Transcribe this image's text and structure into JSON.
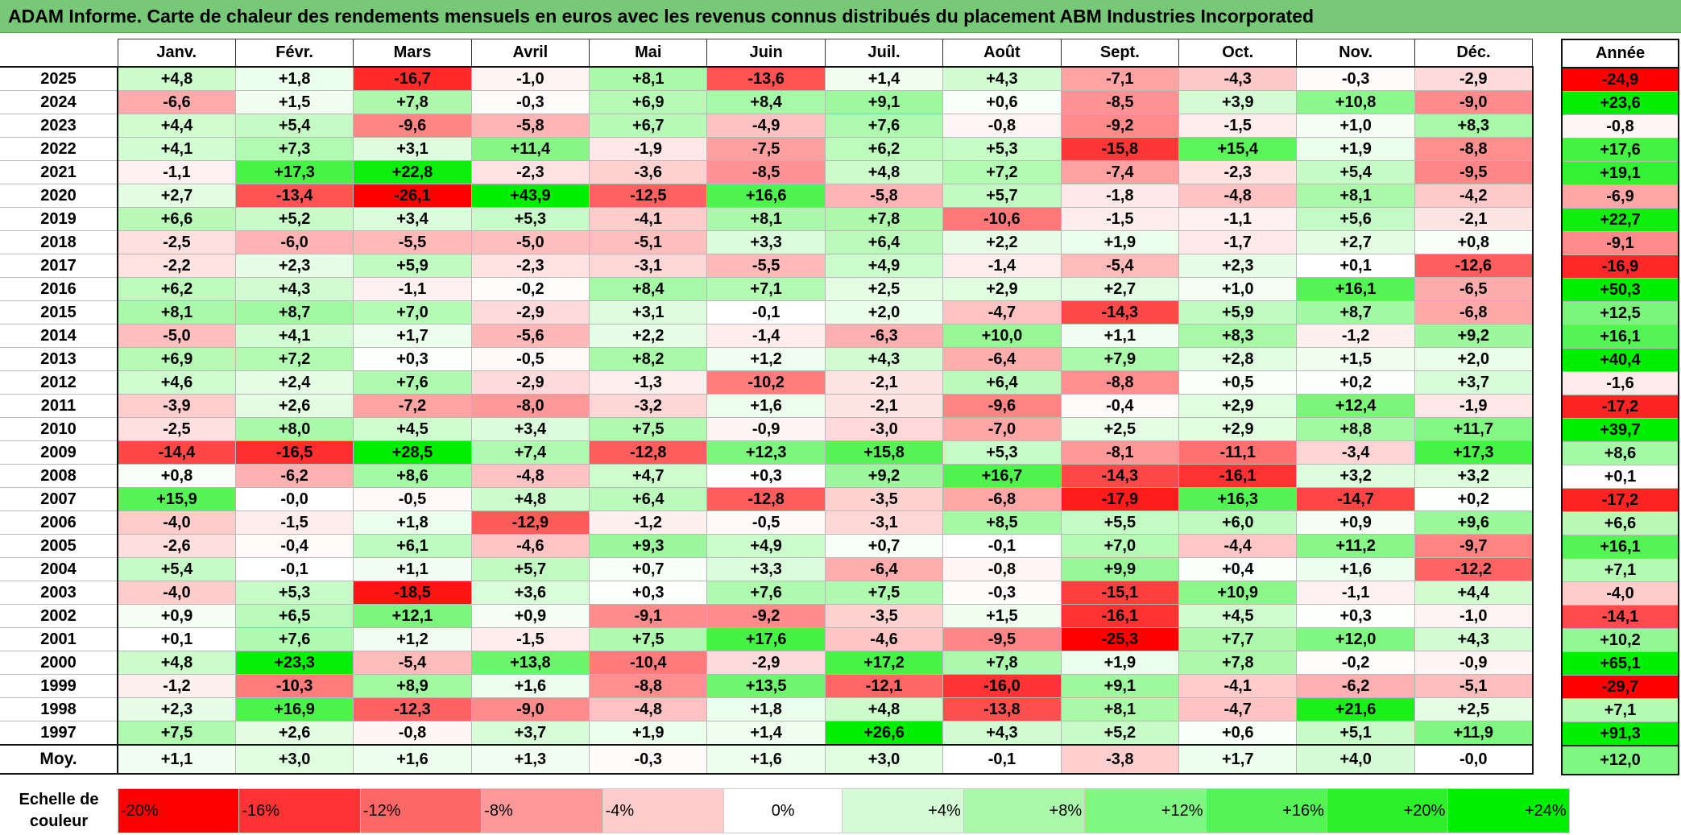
{
  "title": "ADAM Informe. Carte de chaleur des rendements mensuels en euros avec les revenus connus distribués du placement ABM Industries Incorporated",
  "chart_data": {
    "type": "heatmap",
    "title": "ADAM Informe. Carte de chaleur des rendements mensuels en euros avec les revenus connus distribués du placement ABM Industries Incorporated",
    "columns": [
      "Janv.",
      "Févr.",
      "Mars",
      "Avril",
      "Mai",
      "Juin",
      "Juil.",
      "Août",
      "Sept.",
      "Oct.",
      "Nov.",
      "Déc."
    ],
    "annual_header": "Année",
    "rows": [
      {
        "year": "2025",
        "values": [
          "+4,8",
          "+1,8",
          "-16,7",
          "-1,0",
          "+8,1",
          "-13,6",
          "+1,4",
          "+4,3",
          "-7,1",
          "-4,3",
          "-0,3",
          "-2,9"
        ],
        "annual": "-24,9"
      },
      {
        "year": "2024",
        "values": [
          "-6,6",
          "+1,5",
          "+7,8",
          "-0,3",
          "+6,9",
          "+8,4",
          "+9,1",
          "+0,6",
          "-8,5",
          "+3,9",
          "+10,8",
          "-9,0"
        ],
        "annual": "+23,6"
      },
      {
        "year": "2023",
        "values": [
          "+4,4",
          "+5,4",
          "-9,6",
          "-5,8",
          "+6,7",
          "-4,9",
          "+7,6",
          "-0,8",
          "-9,2",
          "-1,5",
          "+1,0",
          "+8,3"
        ],
        "annual": "-0,8"
      },
      {
        "year": "2022",
        "values": [
          "+4,1",
          "+7,3",
          "+3,1",
          "+11,4",
          "-1,9",
          "-7,5",
          "+6,2",
          "+5,3",
          "-15,8",
          "+15,4",
          "+1,9",
          "-8,8"
        ],
        "annual": "+17,6"
      },
      {
        "year": "2021",
        "values": [
          "-1,1",
          "+17,3",
          "+22,8",
          "-2,3",
          "-3,6",
          "-8,5",
          "+4,8",
          "+7,2",
          "-7,4",
          "-2,3",
          "+5,4",
          "-9,5"
        ],
        "annual": "+19,1"
      },
      {
        "year": "2020",
        "values": [
          "+2,7",
          "-13,4",
          "-26,1",
          "+43,9",
          "-12,5",
          "+16,6",
          "-5,8",
          "+5,7",
          "-1,8",
          "-4,8",
          "+8,1",
          "-4,2"
        ],
        "annual": "-6,9"
      },
      {
        "year": "2019",
        "values": [
          "+6,6",
          "+5,2",
          "+3,4",
          "+5,3",
          "-4,1",
          "+8,1",
          "+7,8",
          "-10,6",
          "-1,5",
          "-1,1",
          "+5,6",
          "-2,1"
        ],
        "annual": "+22,7"
      },
      {
        "year": "2018",
        "values": [
          "-2,5",
          "-6,0",
          "-5,5",
          "-5,0",
          "-5,1",
          "+3,3",
          "+6,4",
          "+2,2",
          "+1,9",
          "-1,7",
          "+2,7",
          "+0,8"
        ],
        "annual": "-9,1"
      },
      {
        "year": "2017",
        "values": [
          "-2,2",
          "+2,3",
          "+5,9",
          "-2,3",
          "-3,1",
          "-5,5",
          "+4,9",
          "-1,4",
          "-5,4",
          "+2,3",
          "+0,1",
          "-12,6"
        ],
        "annual": "-16,9"
      },
      {
        "year": "2016",
        "values": [
          "+6,2",
          "+4,3",
          "-1,1",
          "-0,2",
          "+8,4",
          "+7,1",
          "+2,5",
          "+2,9",
          "+2,7",
          "+1,0",
          "+16,1",
          "-6,5"
        ],
        "annual": "+50,3"
      },
      {
        "year": "2015",
        "values": [
          "+8,1",
          "+8,7",
          "+7,0",
          "-2,9",
          "+3,1",
          "-0,1",
          "+2,0",
          "-4,7",
          "-14,3",
          "+5,9",
          "+8,7",
          "-6,8"
        ],
        "annual": "+12,5"
      },
      {
        "year": "2014",
        "values": [
          "-5,0",
          "+4,1",
          "+1,7",
          "-5,6",
          "+2,2",
          "-1,4",
          "-6,3",
          "+10,0",
          "+1,1",
          "+8,3",
          "-1,2",
          "+9,2"
        ],
        "annual": "+16,1"
      },
      {
        "year": "2013",
        "values": [
          "+6,9",
          "+7,2",
          "+0,3",
          "-0,5",
          "+8,2",
          "+1,2",
          "+4,3",
          "-6,4",
          "+7,9",
          "+2,8",
          "+1,5",
          "+2,0"
        ],
        "annual": "+40,4"
      },
      {
        "year": "2012",
        "values": [
          "+4,6",
          "+2,4",
          "+7,6",
          "-2,9",
          "-1,3",
          "-10,2",
          "-2,1",
          "+6,4",
          "-8,8",
          "+0,5",
          "+0,2",
          "+3,7"
        ],
        "annual": "-1,6"
      },
      {
        "year": "2011",
        "values": [
          "-3,9",
          "+2,6",
          "-7,2",
          "-8,0",
          "-3,2",
          "+1,6",
          "-2,1",
          "-9,6",
          "-0,4",
          "+2,9",
          "+12,4",
          "-1,9"
        ],
        "annual": "-17,2"
      },
      {
        "year": "2010",
        "values": [
          "-2,5",
          "+8,0",
          "+4,5",
          "+3,4",
          "+7,5",
          "-0,9",
          "-3,0",
          "-7,0",
          "+2,5",
          "+2,9",
          "+8,8",
          "+11,7"
        ],
        "annual": "+39,7"
      },
      {
        "year": "2009",
        "values": [
          "-14,4",
          "-16,5",
          "+28,5",
          "+7,4",
          "-12,8",
          "+12,3",
          "+15,8",
          "+5,3",
          "-8,1",
          "-11,1",
          "-3,4",
          "+17,3"
        ],
        "annual": "+8,6"
      },
      {
        "year": "2008",
        "values": [
          "+0,8",
          "-6,2",
          "+8,6",
          "-4,8",
          "+4,7",
          "+0,3",
          "+9,2",
          "+16,7",
          "-14,3",
          "-16,1",
          "+3,2",
          "+3,2"
        ],
        "annual": "+0,1"
      },
      {
        "year": "2007",
        "values": [
          "+15,9",
          "-0,0",
          "-0,5",
          "+4,8",
          "+6,4",
          "-12,8",
          "-3,5",
          "-6,8",
          "-17,9",
          "+16,3",
          "-14,7",
          "+0,2"
        ],
        "annual": "-17,2"
      },
      {
        "year": "2006",
        "values": [
          "-4,0",
          "-1,5",
          "+1,8",
          "-12,9",
          "-1,2",
          "-0,5",
          "-3,1",
          "+8,5",
          "+5,5",
          "+6,0",
          "+0,9",
          "+9,6"
        ],
        "annual": "+6,6"
      },
      {
        "year": "2005",
        "values": [
          "-2,6",
          "-0,4",
          "+6,1",
          "-4,6",
          "+9,3",
          "+4,9",
          "+0,7",
          "-0,1",
          "+7,0",
          "-4,4",
          "+11,2",
          "-9,7"
        ],
        "annual": "+16,1"
      },
      {
        "year": "2004",
        "values": [
          "+5,4",
          "-0,1",
          "+1,1",
          "+5,7",
          "+0,7",
          "+3,3",
          "-6,4",
          "-0,8",
          "+9,9",
          "+0,4",
          "+1,6",
          "-12,2"
        ],
        "annual": "+7,1"
      },
      {
        "year": "2003",
        "values": [
          "-4,0",
          "+5,3",
          "-18,5",
          "+3,6",
          "+0,3",
          "+7,6",
          "+7,5",
          "-0,3",
          "-15,1",
          "+10,9",
          "-1,1",
          "+4,4"
        ],
        "annual": "-4,0"
      },
      {
        "year": "2002",
        "values": [
          "+0,9",
          "+6,5",
          "+12,1",
          "+0,9",
          "-9,1",
          "-9,2",
          "-3,5",
          "+1,5",
          "-16,1",
          "+4,5",
          "+0,3",
          "-1,0"
        ],
        "annual": "-14,1"
      },
      {
        "year": "2001",
        "values": [
          "+0,1",
          "+7,6",
          "+1,2",
          "-1,5",
          "+7,5",
          "+17,6",
          "-4,6",
          "-9,5",
          "-25,3",
          "+7,7",
          "+12,0",
          "+4,3"
        ],
        "annual": "+10,2"
      },
      {
        "year": "2000",
        "values": [
          "+4,8",
          "+23,3",
          "-5,4",
          "+13,8",
          "-10,4",
          "-2,9",
          "+17,2",
          "+7,8",
          "+1,9",
          "+7,8",
          "-0,2",
          "-0,9"
        ],
        "annual": "+65,1"
      },
      {
        "year": "1999",
        "values": [
          "-1,2",
          "-10,3",
          "+8,9",
          "+1,6",
          "-8,8",
          "+13,5",
          "-12,1",
          "-16,0",
          "+9,1",
          "-4,1",
          "-6,2",
          "-5,1"
        ],
        "annual": "-29,7"
      },
      {
        "year": "1998",
        "values": [
          "+2,3",
          "+16,9",
          "-12,3",
          "-9,0",
          "-4,8",
          "+1,8",
          "+4,8",
          "-13,8",
          "+8,1",
          "-4,7",
          "+21,6",
          "+2,5"
        ],
        "annual": "+7,1"
      },
      {
        "year": "1997",
        "values": [
          "+7,5",
          "+2,6",
          "-0,8",
          "+3,7",
          "+1,9",
          "+1,4",
          "+26,6",
          "+4,3",
          "+5,2",
          "+0,6",
          "+5,1",
          "+11,9"
        ],
        "annual": "+91,3"
      }
    ],
    "average": {
      "label": "Moy.",
      "values": [
        "+1,1",
        "+3,0",
        "+1,6",
        "+1,3",
        "-0,3",
        "+1,6",
        "+3,0",
        "-0,1",
        "-3,8",
        "+1,7",
        "+4,0",
        "-0,0"
      ],
      "annual": "+12,0"
    },
    "color_scale": {
      "label": "Echelle de couleur",
      "stops": [
        "-20%",
        "-16%",
        "-12%",
        "-8%",
        "-4%",
        "0%",
        "+4%",
        "+8%",
        "+12%",
        "+16%",
        "+20%",
        "+24%"
      ],
      "stop_values": [
        -20,
        -16,
        -12,
        -8,
        -4,
        0,
        4,
        8,
        12,
        16,
        20,
        24
      ],
      "negative_color": "#ff0000",
      "positive_color": "#00ee00",
      "neutral_color": "#ffffff"
    }
  }
}
